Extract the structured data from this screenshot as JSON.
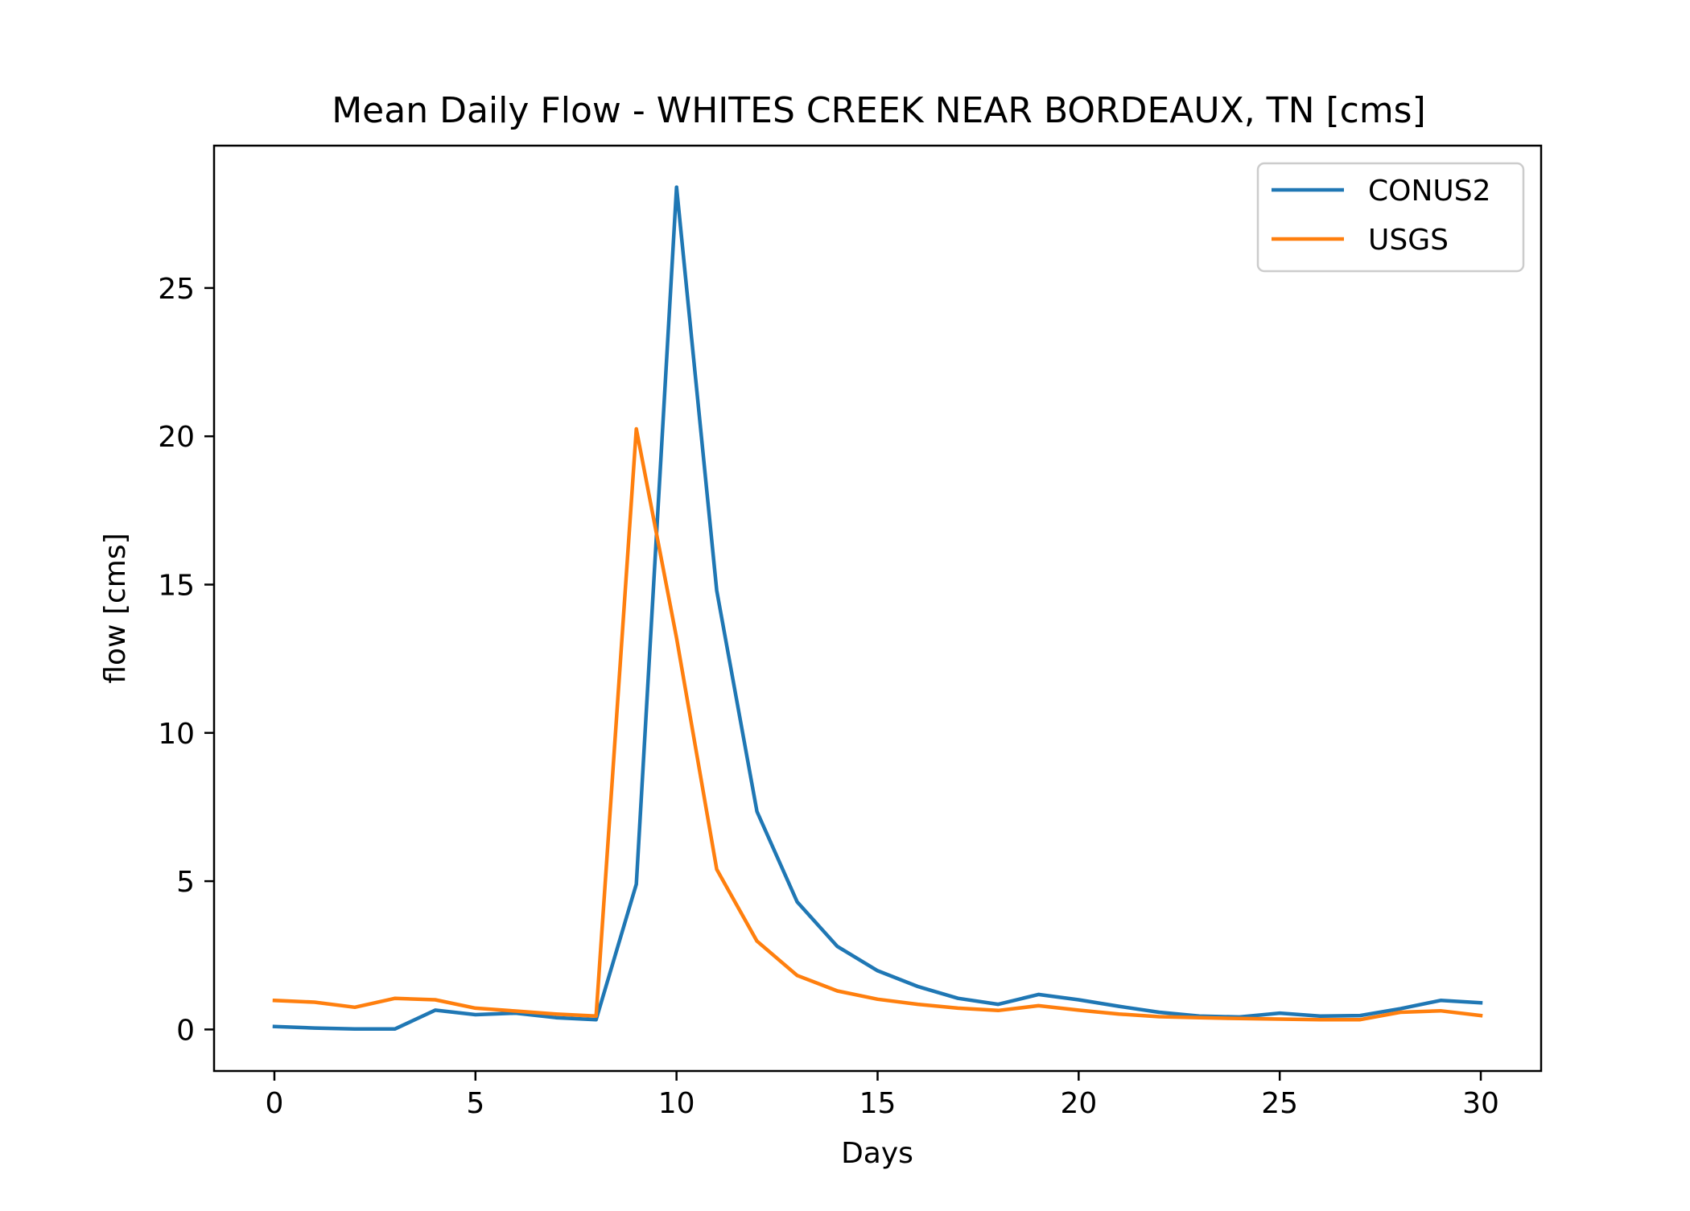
{
  "chart_data": {
    "type": "line",
    "title": "Mean Daily Flow - WHITES CREEK NEAR BORDEAUX, TN [cms]",
    "xlabel": "Days",
    "ylabel": "flow [cms]",
    "xlim": [
      -1.5,
      31.5
    ],
    "ylim": [
      -1.4,
      29.8
    ],
    "xticks": [
      0,
      5,
      10,
      15,
      20,
      25,
      30
    ],
    "yticks": [
      0,
      5,
      10,
      15,
      20,
      25
    ],
    "grid": false,
    "legend_position": "top-right",
    "x": [
      0,
      1,
      2,
      3,
      4,
      5,
      6,
      7,
      8,
      9,
      10,
      11,
      12,
      13,
      14,
      15,
      16,
      17,
      18,
      19,
      20,
      21,
      22,
      23,
      24,
      25,
      26,
      27,
      28,
      29,
      30
    ],
    "series": [
      {
        "name": "CONUS2",
        "color": "#1f77b4",
        "values": [
          0.1,
          0.05,
          0.02,
          0.02,
          0.65,
          0.5,
          0.55,
          0.4,
          0.33,
          4.9,
          28.4,
          14.8,
          7.35,
          4.3,
          2.8,
          1.98,
          1.45,
          1.05,
          0.85,
          1.18,
          1.0,
          0.78,
          0.58,
          0.45,
          0.42,
          0.55,
          0.45,
          0.47,
          0.7,
          0.98,
          0.9
        ]
      },
      {
        "name": "USGS",
        "color": "#ff7f0e",
        "values": [
          0.98,
          0.92,
          0.75,
          1.05,
          1.0,
          0.72,
          0.62,
          0.52,
          0.45,
          20.25,
          13.2,
          5.4,
          2.98,
          1.82,
          1.3,
          1.02,
          0.85,
          0.72,
          0.64,
          0.8,
          0.65,
          0.52,
          0.43,
          0.4,
          0.37,
          0.35,
          0.33,
          0.33,
          0.58,
          0.63,
          0.47
        ]
      }
    ]
  }
}
